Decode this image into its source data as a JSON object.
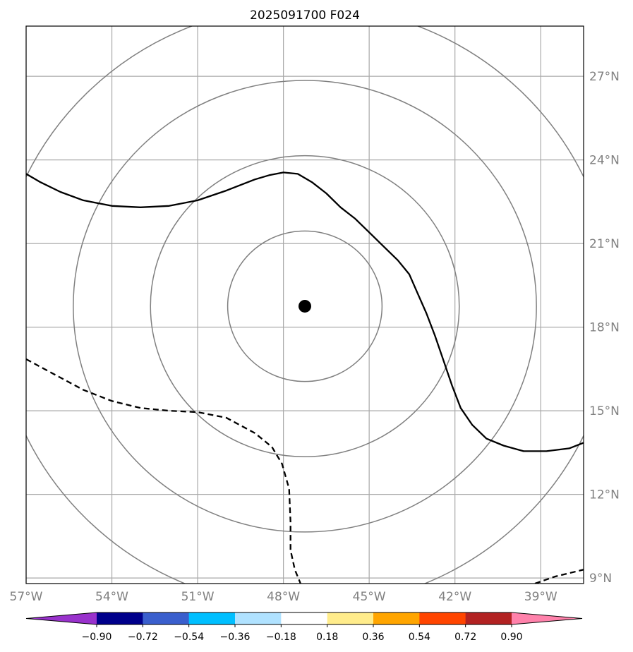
{
  "title": "2025091700 F024",
  "map": {
    "lon_range": [
      -57,
      -37.5
    ],
    "lat_range": [
      8.8,
      28.8
    ],
    "lon_ticks": [
      {
        "value": -57,
        "label": "57°W"
      },
      {
        "value": -54,
        "label": "54°W"
      },
      {
        "value": -51,
        "label": "51°W"
      },
      {
        "value": -48,
        "label": "48°W"
      },
      {
        "value": -45,
        "label": "45°W"
      },
      {
        "value": -42,
        "label": "42°W"
      },
      {
        "value": -39,
        "label": "39°W"
      }
    ],
    "lat_ticks": [
      {
        "value": 9,
        "label": "9°N"
      },
      {
        "value": 12,
        "label": "12°N"
      },
      {
        "value": 15,
        "label": "15°N"
      },
      {
        "value": 18,
        "label": "18°N"
      },
      {
        "value": 21,
        "label": "21°N"
      },
      {
        "value": 24,
        "label": "24°N"
      },
      {
        "value": 27,
        "label": "27°N"
      }
    ],
    "center": {
      "lon": -47.25,
      "lat": 18.75,
      "marker_color": "#000000"
    },
    "range_ring_radii_deg": [
      2.7,
      5.4,
      8.1,
      10.8
    ],
    "solid_contour": [
      [
        -57.0,
        23.5
      ],
      [
        -56.5,
        23.2
      ],
      [
        -55.8,
        22.85
      ],
      [
        -55.0,
        22.55
      ],
      [
        -54.0,
        22.35
      ],
      [
        -53.0,
        22.3
      ],
      [
        -52.0,
        22.35
      ],
      [
        -51.0,
        22.55
      ],
      [
        -50.0,
        22.9
      ],
      [
        -49.0,
        23.3
      ],
      [
        -48.5,
        23.45
      ],
      [
        -48.0,
        23.55
      ],
      [
        -47.5,
        23.5
      ],
      [
        -47.0,
        23.2
      ],
      [
        -46.5,
        22.8
      ],
      [
        -46.0,
        22.3
      ],
      [
        -45.5,
        21.9
      ],
      [
        -45.0,
        21.4
      ],
      [
        -44.5,
        20.9
      ],
      [
        -44.0,
        20.4
      ],
      [
        -43.6,
        19.9
      ],
      [
        -43.3,
        19.2
      ],
      [
        -43.0,
        18.5
      ],
      [
        -42.7,
        17.7
      ],
      [
        -42.4,
        16.8
      ],
      [
        -42.1,
        15.9
      ],
      [
        -41.8,
        15.1
      ],
      [
        -41.4,
        14.5
      ],
      [
        -40.9,
        14.0
      ],
      [
        -40.3,
        13.75
      ],
      [
        -39.6,
        13.55
      ],
      [
        -38.8,
        13.55
      ],
      [
        -38.0,
        13.65
      ],
      [
        -37.5,
        13.85
      ]
    ],
    "dashed_contour_1": [
      [
        -57.0,
        16.85
      ],
      [
        -56.0,
        16.3
      ],
      [
        -55.0,
        15.75
      ],
      [
        -54.0,
        15.35
      ],
      [
        -53.0,
        15.1
      ],
      [
        -52.0,
        15.0
      ],
      [
        -51.0,
        14.95
      ],
      [
        -50.0,
        14.75
      ],
      [
        -49.0,
        14.2
      ],
      [
        -48.4,
        13.7
      ],
      [
        -48.05,
        13.1
      ],
      [
        -47.8,
        12.2
      ],
      [
        -47.75,
        11.0
      ],
      [
        -47.75,
        10.0
      ],
      [
        -47.6,
        9.3
      ],
      [
        -47.4,
        8.8
      ]
    ],
    "dashed_contour_2": [
      [
        -39.2,
        8.8
      ],
      [
        -38.5,
        9.05
      ],
      [
        -37.5,
        9.3
      ]
    ]
  },
  "colorbar": {
    "levels": [
      "−0.90",
      "−0.72",
      "−0.54",
      "−0.36",
      "−0.18",
      "0.18",
      "0.36",
      "0.54",
      "0.72",
      "0.90"
    ],
    "colors": [
      "#9932cc",
      "#00008b",
      "#3a5fcd",
      "#00bfff",
      "#b0e2ff",
      "#ffffff",
      "#ffec8b",
      "#ffa500",
      "#ff4500",
      "#b22222",
      "#ff82ab"
    ]
  }
}
